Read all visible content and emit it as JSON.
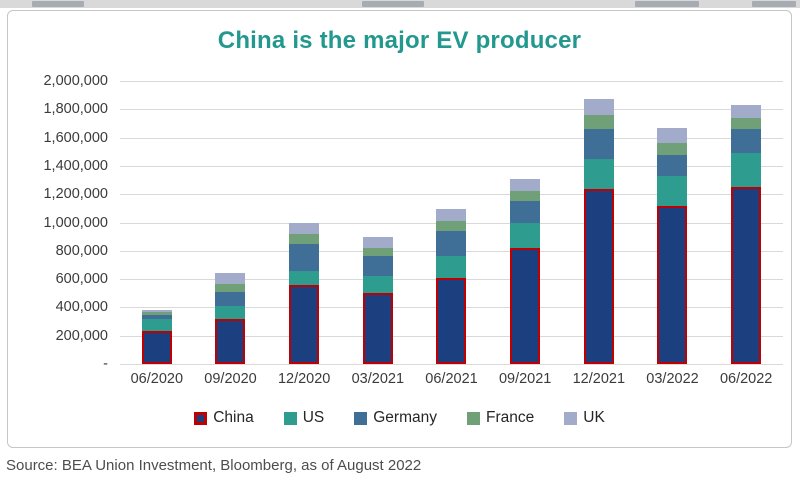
{
  "page": {
    "source_note": "Source: BEA Union Investment, Bloomberg, as of August 2022"
  },
  "colors": {
    "title": "#23988e",
    "china_border": "#c00000",
    "gridline": "#d9d9d9",
    "axis_text": "#3b3b3b"
  },
  "chart_data": {
    "type": "bar",
    "stacked": true,
    "title": "China is the major EV producer",
    "xlabel": "",
    "ylabel": "",
    "grid": true,
    "legend_position": "bottom",
    "ylim": [
      0,
      2000000
    ],
    "categories": [
      "06/2020",
      "09/2020",
      "12/2020",
      "03/2021",
      "06/2021",
      "09/2021",
      "12/2021",
      "03/2022",
      "06/2022"
    ],
    "series": [
      {
        "name": "China",
        "color": "#1b3f7f",
        "border_color": "#c00000",
        "values": [
          230000,
          320000,
          560000,
          500000,
          610000,
          820000,
          1240000,
          1120000,
          1250000
        ]
      },
      {
        "name": "US",
        "color": "#2e9c8e",
        "values": [
          85000,
          90000,
          100000,
          120000,
          150000,
          180000,
          210000,
          210000,
          240000
        ]
      },
      {
        "name": "Germany",
        "color": "#3f6e96",
        "values": [
          35000,
          100000,
          190000,
          140000,
          180000,
          150000,
          210000,
          150000,
          170000
        ]
      },
      {
        "name": "France",
        "color": "#70a078",
        "values": [
          20000,
          55000,
          70000,
          60000,
          70000,
          70000,
          100000,
          80000,
          80000
        ]
      },
      {
        "name": "UK",
        "color": "#a2abc9",
        "values": [
          10000,
          75000,
          80000,
          80000,
          85000,
          85000,
          110000,
          110000,
          90000
        ]
      }
    ],
    "y_ticks": [
      {
        "value": 2000000,
        "label": "2,000,000"
      },
      {
        "value": 1800000,
        "label": "1,800,000"
      },
      {
        "value": 1600000,
        "label": "1,600,000"
      },
      {
        "value": 1400000,
        "label": "1,400,000"
      },
      {
        "value": 1200000,
        "label": "1,200,000"
      },
      {
        "value": 1000000,
        "label": "1,000,000"
      },
      {
        "value": 800000,
        "label": "800,000"
      },
      {
        "value": 600000,
        "label": "600,000"
      },
      {
        "value": 400000,
        "label": "400,000"
      },
      {
        "value": 200000,
        "label": "200,000"
      },
      {
        "value": 0,
        "label": "-"
      }
    ]
  }
}
